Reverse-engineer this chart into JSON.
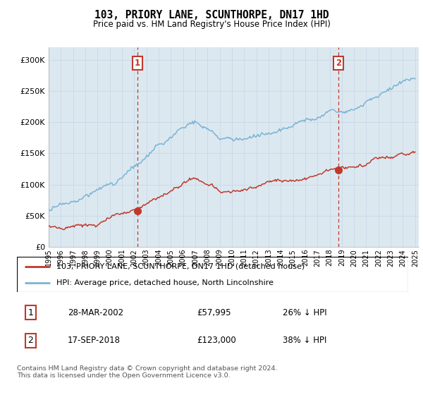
{
  "title": "103, PRIORY LANE, SCUNTHORPE, DN17 1HD",
  "subtitle": "Price paid vs. HM Land Registry's House Price Index (HPI)",
  "ylim": [
    0,
    320000
  ],
  "yticks": [
    0,
    50000,
    100000,
    150000,
    200000,
    250000,
    300000
  ],
  "ytick_labels": [
    "£0",
    "£50K",
    "£100K",
    "£150K",
    "£200K",
    "£250K",
    "£300K"
  ],
  "hpi_color": "#7ab4d4",
  "price_color": "#c0392b",
  "vline_color": "#c0392b",
  "grid_color": "#c8d8e8",
  "plot_bg": "#dce8f0",
  "sale1_year": 2002.25,
  "sale1_price": 57995,
  "sale2_year": 2018.71,
  "sale2_price": 123000,
  "legend_entry1": "103, PRIORY LANE, SCUNTHORPE, DN17 1HD (detached house)",
  "legend_entry2": "HPI: Average price, detached house, North Lincolnshire",
  "table_row1": [
    "1",
    "28-MAR-2002",
    "£57,995",
    "26% ↓ HPI"
  ],
  "table_row2": [
    "2",
    "17-SEP-2018",
    "£123,000",
    "38% ↓ HPI"
  ],
  "footer": "Contains HM Land Registry data © Crown copyright and database right 2024.\nThis data is licensed under the Open Government Licence v3.0.",
  "x_start_year": 1995,
  "x_end_year": 2025
}
